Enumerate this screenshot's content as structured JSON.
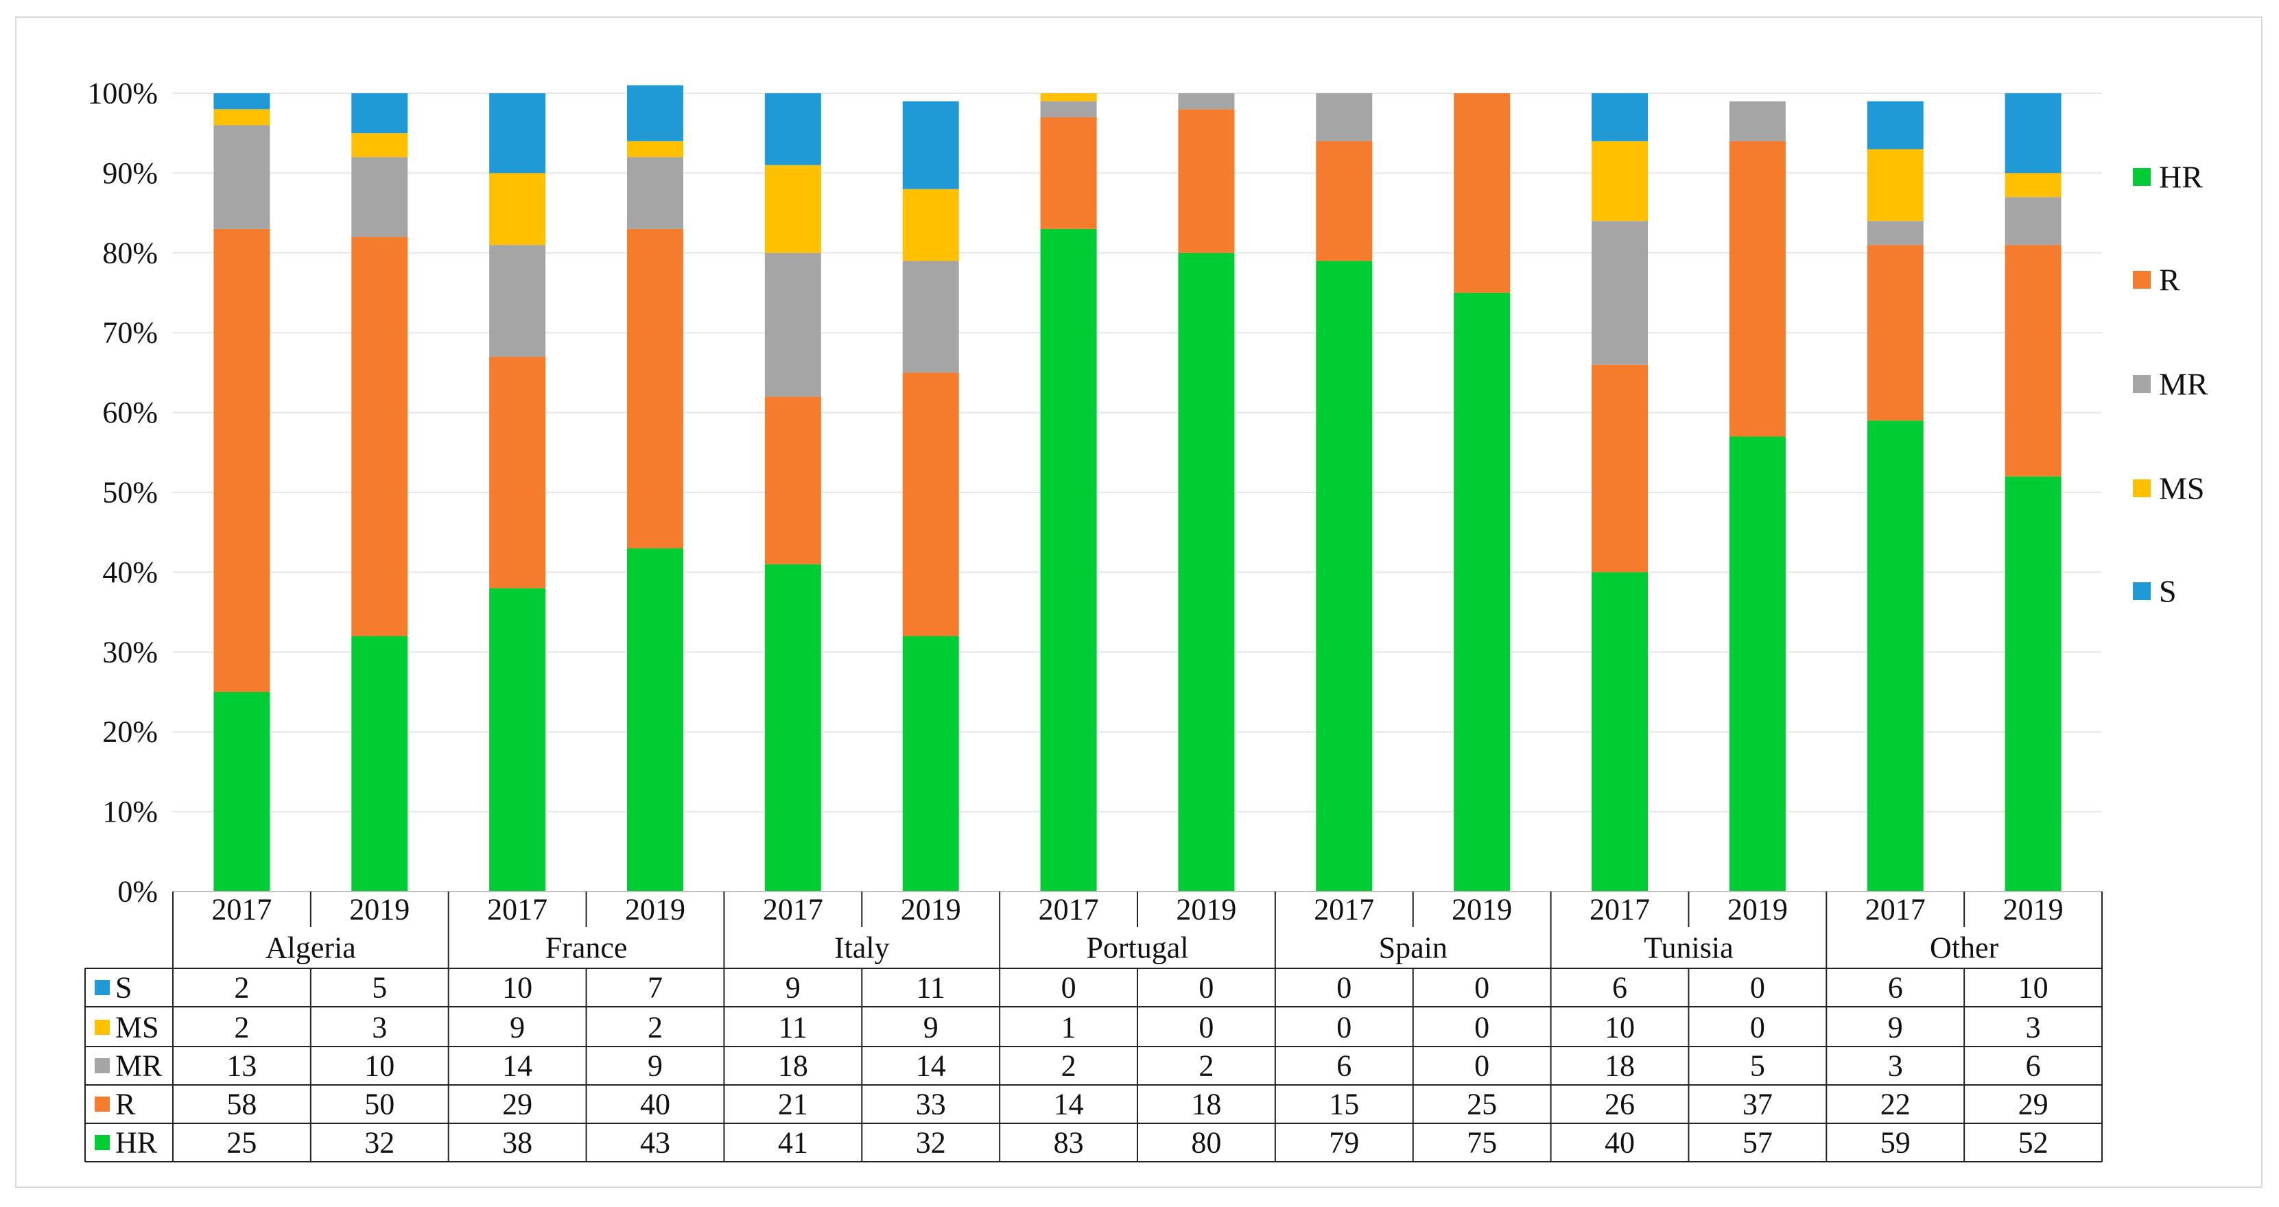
{
  "chart_data": {
    "type": "bar",
    "stacked": true,
    "title": "",
    "xlabel": "",
    "ylabel": "",
    "ylim": [
      0,
      100
    ],
    "y_ticks": [
      "0%",
      "10%",
      "20%",
      "30%",
      "40%",
      "50%",
      "60%",
      "70%",
      "80%",
      "90%",
      "100%"
    ],
    "groups": [
      {
        "name": "Algeria",
        "years": [
          "2017",
          "2019"
        ]
      },
      {
        "name": "France",
        "years": [
          "2017",
          "2019"
        ]
      },
      {
        "name": "Italy",
        "years": [
          "2017",
          "2019"
        ]
      },
      {
        "name": "Portugal",
        "years": [
          "2017",
          "2019"
        ]
      },
      {
        "name": "Spain",
        "years": [
          "2017",
          "2019"
        ]
      },
      {
        "name": "Tunisia",
        "years": [
          "2017",
          "2019"
        ]
      },
      {
        "name": "Other",
        "years": [
          "2017",
          "2019"
        ]
      }
    ],
    "series": [
      {
        "name": "HR",
        "color": "#00cc33",
        "values": [
          25,
          32,
          38,
          43,
          41,
          32,
          83,
          80,
          79,
          75,
          40,
          57,
          59,
          52
        ]
      },
      {
        "name": "R",
        "color": "#f47c2c",
        "values": [
          58,
          50,
          29,
          40,
          21,
          33,
          14,
          18,
          15,
          25,
          26,
          37,
          22,
          29
        ]
      },
      {
        "name": "MR",
        "color": "#a5a5a5",
        "values": [
          13,
          10,
          14,
          9,
          18,
          14,
          2,
          2,
          6,
          0,
          18,
          5,
          3,
          6
        ]
      },
      {
        "name": "MS",
        "color": "#ffc000",
        "values": [
          2,
          3,
          9,
          2,
          11,
          9,
          1,
          0,
          0,
          0,
          10,
          0,
          9,
          3
        ]
      },
      {
        "name": "S",
        "color": "#1f9ad6",
        "values": [
          2,
          5,
          10,
          7,
          9,
          11,
          0,
          0,
          0,
          0,
          6,
          0,
          6,
          10
        ]
      }
    ],
    "legend": {
      "position": "right",
      "order": [
        "HR",
        "R",
        "MR",
        "MS",
        "S"
      ]
    },
    "table_row_order": [
      "S",
      "MS",
      "MR",
      "R",
      "HR"
    ],
    "grid": true
  }
}
